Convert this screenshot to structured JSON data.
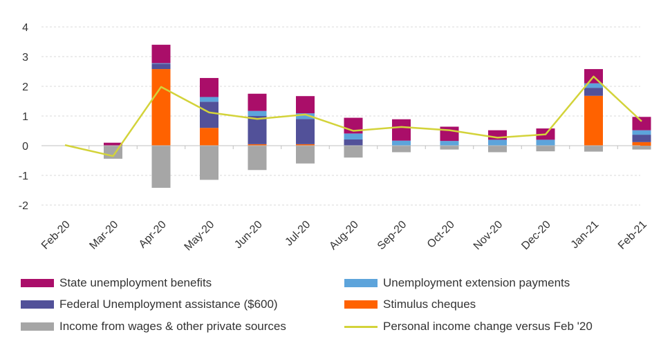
{
  "chart_data": {
    "type": "bar",
    "stacked": true,
    "categories": [
      "Feb-20",
      "Mar-20",
      "Apr-20",
      "May-20",
      "Jun-20",
      "Jul-20",
      "Aug-20",
      "Sep-20",
      "Oct-20",
      "Nov-20",
      "Dec-20",
      "Jan-21",
      "Feb-21"
    ],
    "ylim": [
      -2,
      4
    ],
    "yticks": [
      4,
      3,
      2,
      1,
      0,
      -1,
      -2
    ],
    "ytick_labels": [
      "4",
      "3",
      "2",
      "1",
      "0",
      "-1",
      "-2"
    ],
    "grid": true,
    "series": [
      {
        "name": "Income from wages & other private sources",
        "color": "#A6A6A6",
        "values": [
          0,
          -0.44,
          -1.42,
          -1.15,
          -0.82,
          -0.6,
          -0.4,
          -0.22,
          -0.13,
          -0.22,
          -0.19,
          -0.2,
          -0.13
        ]
      },
      {
        "name": "Stimulus cheques",
        "color": "#FF6200",
        "values": [
          0,
          0,
          2.58,
          0.6,
          0.05,
          0.05,
          0,
          0,
          0,
          0,
          0,
          1.68,
          0.12
        ]
      },
      {
        "name": "Federal Unemployment assistance ($600)",
        "color": "#525199",
        "values": [
          0,
          0,
          0.18,
          0.88,
          0.95,
          0.85,
          0.21,
          0,
          0,
          0,
          0,
          0.27,
          0.25
        ]
      },
      {
        "name": "Unemployment extension payments",
        "color": "#5DA4DB",
        "values": [
          0,
          0,
          0.02,
          0.16,
          0.17,
          0.19,
          0.2,
          0.17,
          0.16,
          0.2,
          0.2,
          0.15,
          0.15
        ]
      },
      {
        "name": "State unemployment benefits",
        "color": "#AA0E69",
        "values": [
          0,
          0.1,
          0.62,
          0.64,
          0.58,
          0.58,
          0.53,
          0.72,
          0.48,
          0.32,
          0.38,
          0.48,
          0.45
        ]
      }
    ],
    "line": {
      "name": "Personal income change versus Feb '20",
      "color": "#D3D33A",
      "values": [
        0.02,
        -0.35,
        1.98,
        1.12,
        0.9,
        1.05,
        0.5,
        0.63,
        0.52,
        0.27,
        0.38,
        2.33,
        0.82
      ]
    },
    "legend": [
      {
        "label": "State unemployment benefits",
        "color": "#AA0E69",
        "kind": "bar"
      },
      {
        "label": "Unemployment extension payments",
        "color": "#5DA4DB",
        "kind": "bar"
      },
      {
        "label": "Federal Unemployment assistance ($600)",
        "color": "#525199",
        "kind": "bar"
      },
      {
        "label": "Stimulus cheques",
        "color": "#FF6200",
        "kind": "bar"
      },
      {
        "label": "Income from wages & other private sources",
        "color": "#A6A6A6",
        "kind": "bar"
      },
      {
        "label": "Personal income change versus Feb '20",
        "color": "#D3D33A",
        "kind": "line"
      }
    ]
  }
}
